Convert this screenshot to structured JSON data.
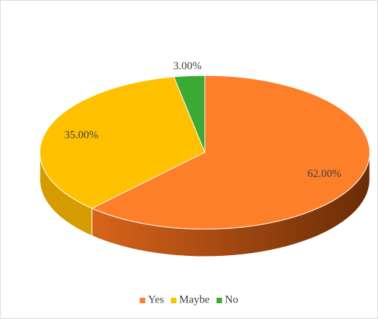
{
  "chart_data": {
    "type": "pie3d",
    "categories": [
      "Yes",
      "Maybe",
      "No"
    ],
    "values": [
      62,
      35,
      3
    ],
    "value_labels": [
      "62.00%",
      "35.00%",
      "3.00%"
    ],
    "colors": [
      "#fd7f2a",
      "#ffc000",
      "#3aaa35"
    ],
    "side_colors": [
      [
        "#d8641a",
        "#6a2c06"
      ],
      [
        "#d49c00",
        "#d49c00"
      ],
      [
        "#2a8a27",
        "#2a8a27"
      ]
    ],
    "legend": "bottom"
  }
}
